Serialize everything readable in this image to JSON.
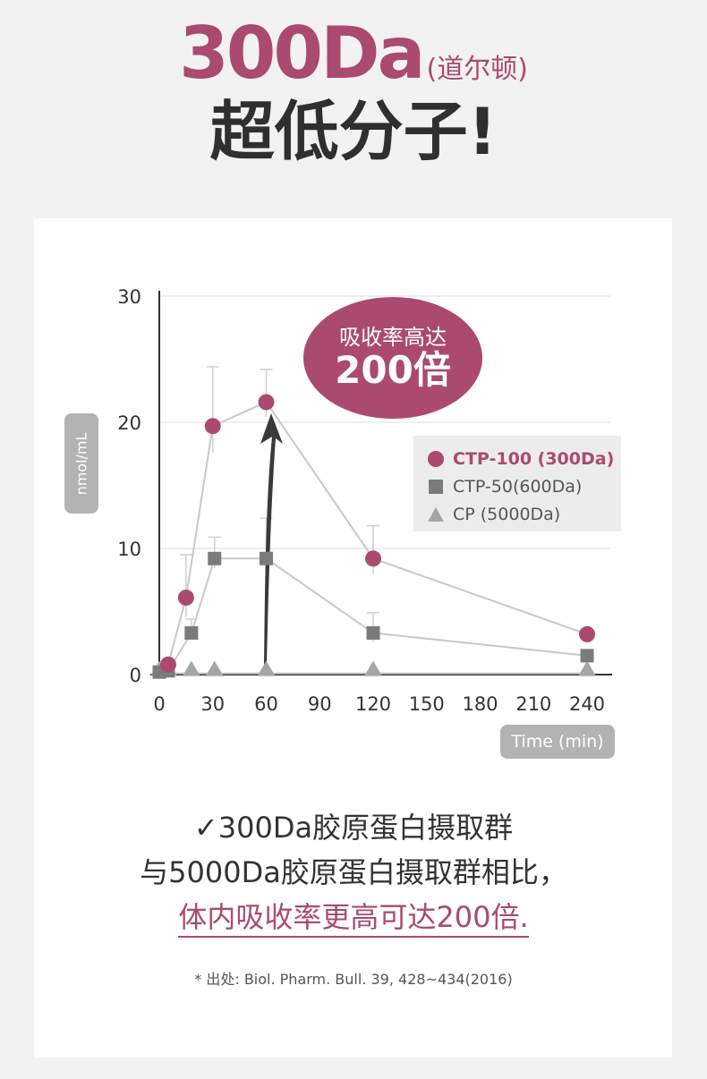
{
  "headline": {
    "big": "300Da",
    "paren": "(道尔顿)",
    "line2": "超低分子!"
  },
  "bubble": {
    "line1": "吸收率高达",
    "line2": "200倍"
  },
  "caption": {
    "line1": "✓300Da胶原蛋白摄取群",
    "line2": "与5000Da胶原蛋白摄取群相比，",
    "line3": "体内吸收率更高可达200倍."
  },
  "source": "* 出处: Biol. Pharm. Bull. 39, 428~434(2016)",
  "colors": {
    "accent": "#ab4a6f",
    "square": "#7b7b7b",
    "triangle": "#a6a6a6",
    "line": "#c8c8c8"
  },
  "chart_data": {
    "type": "line",
    "xlabel": "Time (min)",
    "ylabel": "nmol/mL",
    "xticks": [
      "0",
      "30",
      "60",
      "90",
      "120",
      "150",
      "180",
      "210",
      "240"
    ],
    "yticks": [
      "0",
      "10",
      "20",
      "30"
    ],
    "xlim": [
      0,
      240
    ],
    "ylim": [
      0,
      30
    ],
    "grid": "horizontal",
    "legend_position": "right",
    "series": [
      {
        "name": "CTP-100 (300Da)",
        "marker": "circle",
        "points": [
          [
            5,
            0.8
          ],
          [
            15,
            6.1
          ],
          [
            30,
            19.7
          ],
          [
            60,
            21.6
          ],
          [
            120,
            9.2
          ],
          [
            240,
            3.2
          ]
        ],
        "error": [
          null,
          3.4,
          4.7,
          2.6,
          2.6,
          null
        ]
      },
      {
        "name": "CTP-50(600Da)",
        "marker": "square",
        "points": [
          [
            0,
            0.2
          ],
          [
            5,
            0.3
          ],
          [
            18,
            3.3
          ],
          [
            31,
            9.2
          ],
          [
            60,
            9.2
          ],
          [
            120,
            3.3
          ],
          [
            240,
            1.5
          ]
        ],
        "error": [
          null,
          null,
          1.1,
          1.7,
          3.2,
          1.6,
          null
        ]
      },
      {
        "name": "CP (5000Da)",
        "marker": "triangle",
        "points": [
          [
            0,
            0.1
          ],
          [
            5,
            0.1
          ],
          [
            18,
            0.1
          ],
          [
            31,
            0.1
          ],
          [
            60,
            0.1
          ],
          [
            120,
            0.1
          ],
          [
            240,
            0.1
          ]
        ],
        "error": [
          null,
          null,
          null,
          null,
          null,
          null,
          null
        ]
      }
    ]
  }
}
